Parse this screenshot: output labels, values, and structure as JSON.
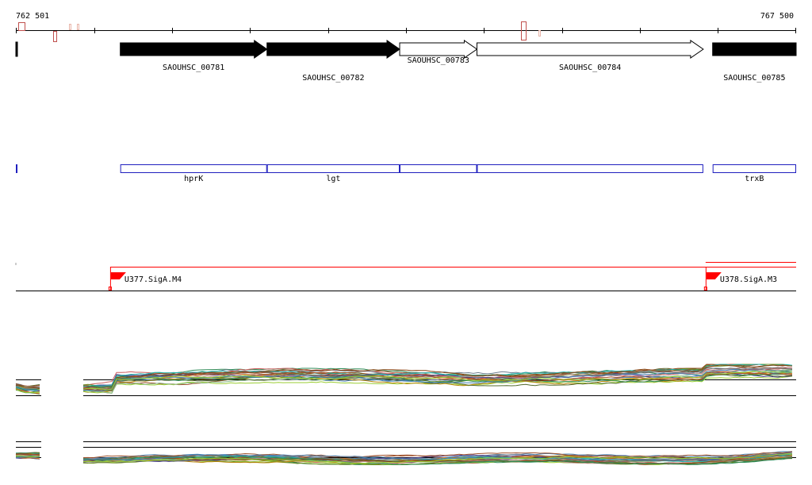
{
  "ruler": {
    "start_label": "762 501",
    "end_label": "767 500",
    "start_bp": 762501,
    "end_bp": 767500
  },
  "genes": [
    {
      "label": "",
      "start_bp": 762501,
      "end_bp": 762512,
      "strand": "+",
      "filled": true
    },
    {
      "label": "SAOUHSC_00781",
      "start_bp": 763170,
      "end_bp": 764110,
      "strand": "+",
      "filled": true
    },
    {
      "label": "SAOUHSC_00782",
      "start_bp": 764110,
      "end_bp": 764960,
      "strand": "+",
      "filled": true
    },
    {
      "label": "SAOUHSC_00783",
      "start_bp": 764960,
      "end_bp": 765455,
      "strand": "+",
      "filled": false
    },
    {
      "label": "SAOUHSC_00784",
      "start_bp": 765455,
      "end_bp": 766905,
      "strand": "+",
      "filled": false
    },
    {
      "label": "SAOUHSC_00785",
      "start_bp": 766965,
      "end_bp": 767500,
      "strand": "+",
      "filled": true
    }
  ],
  "features": [
    {
      "label": "",
      "start_bp": 762501,
      "end_bp": 762505
    },
    {
      "label": "hprK",
      "start_bp": 763170,
      "end_bp": 764110
    },
    {
      "label": "lgt",
      "start_bp": 764110,
      "end_bp": 764960
    },
    {
      "label": "",
      "start_bp": 764960,
      "end_bp": 765455
    },
    {
      "label": "",
      "start_bp": 765455,
      "end_bp": 766905
    },
    {
      "label": "trxB",
      "start_bp": 766965,
      "end_bp": 767500
    }
  ],
  "promoters": [
    {
      "label": "U377.SigA.M4",
      "position_bp": 763105
    },
    {
      "label": "U378.SigA.M3",
      "position_bp": 766920
    }
  ],
  "colors": {
    "ruler": "#000000",
    "tick_marks": "#c0504d",
    "gene_fill": "#000000",
    "feature_outline": "#1f1fbf",
    "promoter": "#ff0000",
    "baseline": "#000000"
  },
  "series_palette": [
    "#556b2f",
    "#8b4513",
    "#2e8b57",
    "#a0522d",
    "#4682b4",
    "#9acd32",
    "#cd5c5c",
    "#6b8e23",
    "#708090",
    "#b8860b",
    "#8fbc8f",
    "#483d8b",
    "#d2691e",
    "#20b2aa",
    "#bc8f8f",
    "#696969"
  ]
}
